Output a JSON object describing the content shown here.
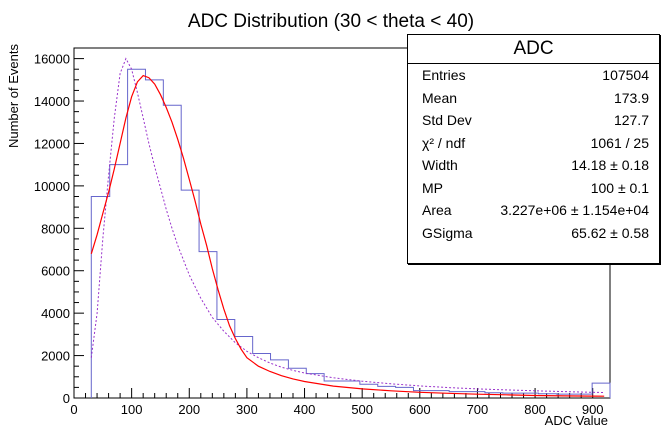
{
  "chart_data": {
    "type": "histogram",
    "title": "ADC Distribution (30 < theta < 40)",
    "xlabel": "ADC Value",
    "ylabel": "Number of Events",
    "xlim": [
      0,
      930
    ],
    "ylim": [
      0,
      16500
    ],
    "x_ticks": [
      0,
      100,
      200,
      300,
      400,
      500,
      600,
      700,
      800,
      900
    ],
    "y_ticks": [
      0,
      2000,
      4000,
      6000,
      8000,
      10000,
      12000,
      14000,
      16000
    ],
    "histogram": {
      "name": "ADC",
      "color": "#6666cc",
      "bins": [
        {
          "x0": 30,
          "x1": 62,
          "y": 9500
        },
        {
          "x0": 62,
          "x1": 93,
          "y": 11000
        },
        {
          "x0": 93,
          "x1": 124,
          "y": 15500
        },
        {
          "x0": 124,
          "x1": 155,
          "y": 15000
        },
        {
          "x0": 155,
          "x1": 186,
          "y": 13800
        },
        {
          "x0": 186,
          "x1": 217,
          "y": 9800
        },
        {
          "x0": 217,
          "x1": 248,
          "y": 6900
        },
        {
          "x0": 248,
          "x1": 279,
          "y": 3700
        },
        {
          "x0": 279,
          "x1": 310,
          "y": 2900
        },
        {
          "x0": 310,
          "x1": 341,
          "y": 2100
        },
        {
          "x0": 341,
          "x1": 372,
          "y": 1800
        },
        {
          "x0": 372,
          "x1": 403,
          "y": 1400
        },
        {
          "x0": 403,
          "x1": 434,
          "y": 1150
        },
        {
          "x0": 434,
          "x1": 465,
          "y": 800
        },
        {
          "x0": 465,
          "x1": 496,
          "y": 800
        },
        {
          "x0": 496,
          "x1": 527,
          "y": 650
        },
        {
          "x0": 527,
          "x1": 558,
          "y": 550
        },
        {
          "x0": 558,
          "x1": 589,
          "y": 500
        },
        {
          "x0": 589,
          "x1": 620,
          "y": 350
        },
        {
          "x0": 620,
          "x1": 651,
          "y": 350
        },
        {
          "x0": 651,
          "x1": 682,
          "y": 300
        },
        {
          "x0": 682,
          "x1": 713,
          "y": 300
        },
        {
          "x0": 713,
          "x1": 744,
          "y": 250
        },
        {
          "x0": 744,
          "x1": 775,
          "y": 230
        },
        {
          "x0": 775,
          "x1": 806,
          "y": 230
        },
        {
          "x0": 806,
          "x1": 837,
          "y": 200
        },
        {
          "x0": 837,
          "x1": 868,
          "y": 180
        },
        {
          "x0": 868,
          "x1": 899,
          "y": 180
        },
        {
          "x0": 899,
          "x1": 930,
          "y": 700
        }
      ]
    },
    "fit_curve": {
      "color": "#ff0000",
      "points": [
        [
          30,
          6800
        ],
        [
          40,
          7700
        ],
        [
          50,
          8700
        ],
        [
          60,
          9700
        ],
        [
          70,
          10800
        ],
        [
          80,
          12000
        ],
        [
          90,
          13200
        ],
        [
          100,
          14200
        ],
        [
          110,
          14900
        ],
        [
          120,
          15200
        ],
        [
          130,
          15100
        ],
        [
          140,
          14800
        ],
        [
          150,
          14300
        ],
        [
          160,
          13700
        ],
        [
          170,
          13000
        ],
        [
          180,
          12200
        ],
        [
          190,
          11300
        ],
        [
          200,
          10300
        ],
        [
          210,
          9300
        ],
        [
          220,
          8200
        ],
        [
          230,
          7200
        ],
        [
          240,
          6100
        ],
        [
          250,
          5100
        ],
        [
          260,
          4200
        ],
        [
          270,
          3400
        ],
        [
          280,
          2800
        ],
        [
          290,
          2300
        ],
        [
          300,
          1900
        ],
        [
          320,
          1500
        ],
        [
          340,
          1250
        ],
        [
          360,
          1050
        ],
        [
          380,
          900
        ],
        [
          400,
          780
        ],
        [
          450,
          560
        ],
        [
          500,
          430
        ],
        [
          550,
          340
        ],
        [
          600,
          270
        ],
        [
          650,
          220
        ],
        [
          700,
          180
        ],
        [
          750,
          150
        ],
        [
          800,
          120
        ],
        [
          850,
          100
        ],
        [
          900,
          90
        ],
        [
          920,
          85
        ]
      ]
    },
    "landau_curve": {
      "color": "#9933cc",
      "points": [
        [
          30,
          1900
        ],
        [
          40,
          4000
        ],
        [
          50,
          7500
        ],
        [
          60,
          10500
        ],
        [
          70,
          13200
        ],
        [
          80,
          15300
        ],
        [
          90,
          16000
        ],
        [
          100,
          15500
        ],
        [
          110,
          14400
        ],
        [
          120,
          13200
        ],
        [
          130,
          12000
        ],
        [
          140,
          10900
        ],
        [
          150,
          9900
        ],
        [
          160,
          8900
        ],
        [
          170,
          8000
        ],
        [
          180,
          7200
        ],
        [
          190,
          6500
        ],
        [
          200,
          5800
        ],
        [
          220,
          4700
        ],
        [
          240,
          3800
        ],
        [
          260,
          3150
        ],
        [
          280,
          2600
        ],
        [
          300,
          2200
        ],
        [
          320,
          1900
        ],
        [
          340,
          1650
        ],
        [
          360,
          1450
        ],
        [
          380,
          1300
        ],
        [
          400,
          1180
        ],
        [
          450,
          950
        ],
        [
          500,
          790
        ],
        [
          550,
          670
        ],
        [
          600,
          570
        ],
        [
          650,
          490
        ],
        [
          700,
          430
        ],
        [
          750,
          380
        ],
        [
          800,
          340
        ],
        [
          850,
          300
        ],
        [
          900,
          270
        ],
        [
          920,
          260
        ]
      ]
    },
    "stats_box": {
      "title": "ADC",
      "rows": [
        {
          "key": "Entries",
          "value": "107504"
        },
        {
          "key": "Mean",
          "value": "173.9"
        },
        {
          "key": "Std Dev",
          "value": "127.7"
        },
        {
          "key": "χ² / ndf",
          "value": "1061 / 25"
        },
        {
          "key": "Width",
          "value": "14.18 ± 0.18"
        },
        {
          "key": "MP",
          "value": "100 ± 0.1"
        },
        {
          "key": "Area",
          "value": "3.227e+06 ± 1.154e+04"
        },
        {
          "key": "GSigma",
          "value": "65.62 ± 0.58"
        }
      ]
    }
  }
}
